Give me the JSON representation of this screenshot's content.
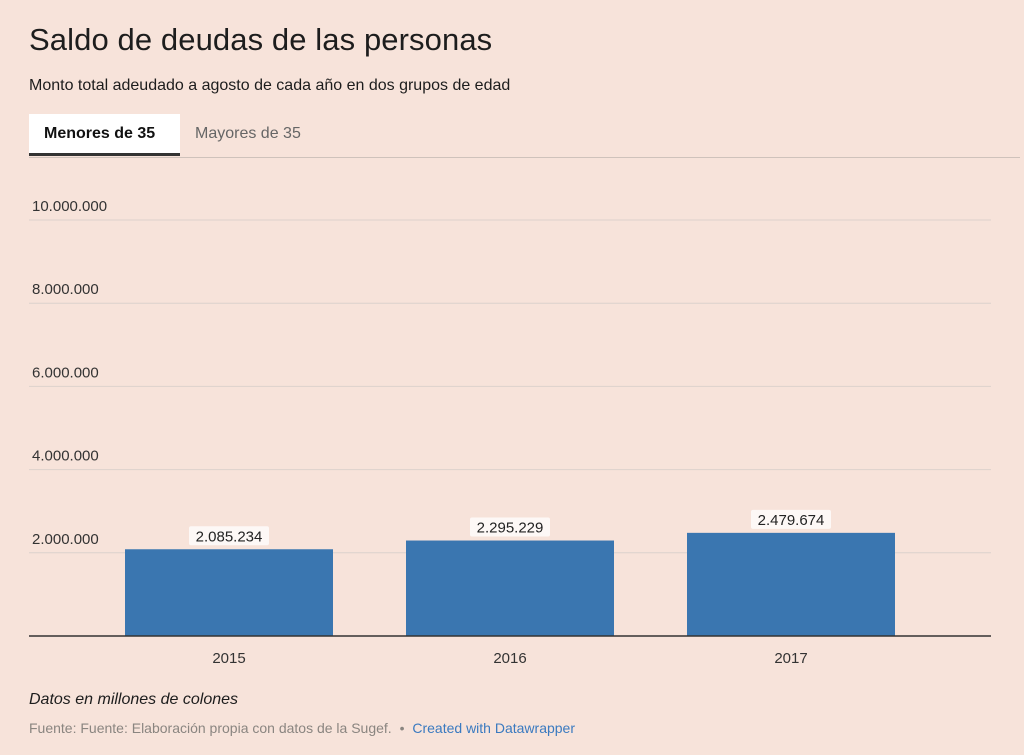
{
  "title": "Saldo de deudas de las personas",
  "subtitle": "Monto total adeudado a agosto de cada año en dos grupos de edad",
  "tabs": [
    {
      "label": "Menores de 35",
      "active": true
    },
    {
      "label": "Mayores de 35",
      "active": false
    }
  ],
  "note": "Datos en millones de colones",
  "footer": {
    "source": "Fuente: Fuente: Elaboración propia con datos de la Sugef.",
    "separator": "•",
    "credit": "Created with Datawrapper"
  },
  "colors": {
    "background": "#f7e3da",
    "bar": "#3a76b0",
    "gridline": "#dcd2cc",
    "baseline": "#333333",
    "link": "#3a7ac0"
  },
  "chart_data": {
    "type": "bar",
    "categories": [
      "2015",
      "2016",
      "2017"
    ],
    "values": [
      2085234,
      2295229,
      2479674
    ],
    "value_labels": [
      "2.085.234",
      "2.295.229",
      "2.479.674"
    ],
    "ylim": [
      0,
      10000000
    ],
    "yticks": [
      2000000,
      4000000,
      6000000,
      8000000,
      10000000
    ],
    "ytick_labels": [
      "2.000.000",
      "4.000.000",
      "6.000.000",
      "8.000.000",
      "10.000.000"
    ],
    "grid": true,
    "xlabel": "",
    "ylabel": ""
  }
}
